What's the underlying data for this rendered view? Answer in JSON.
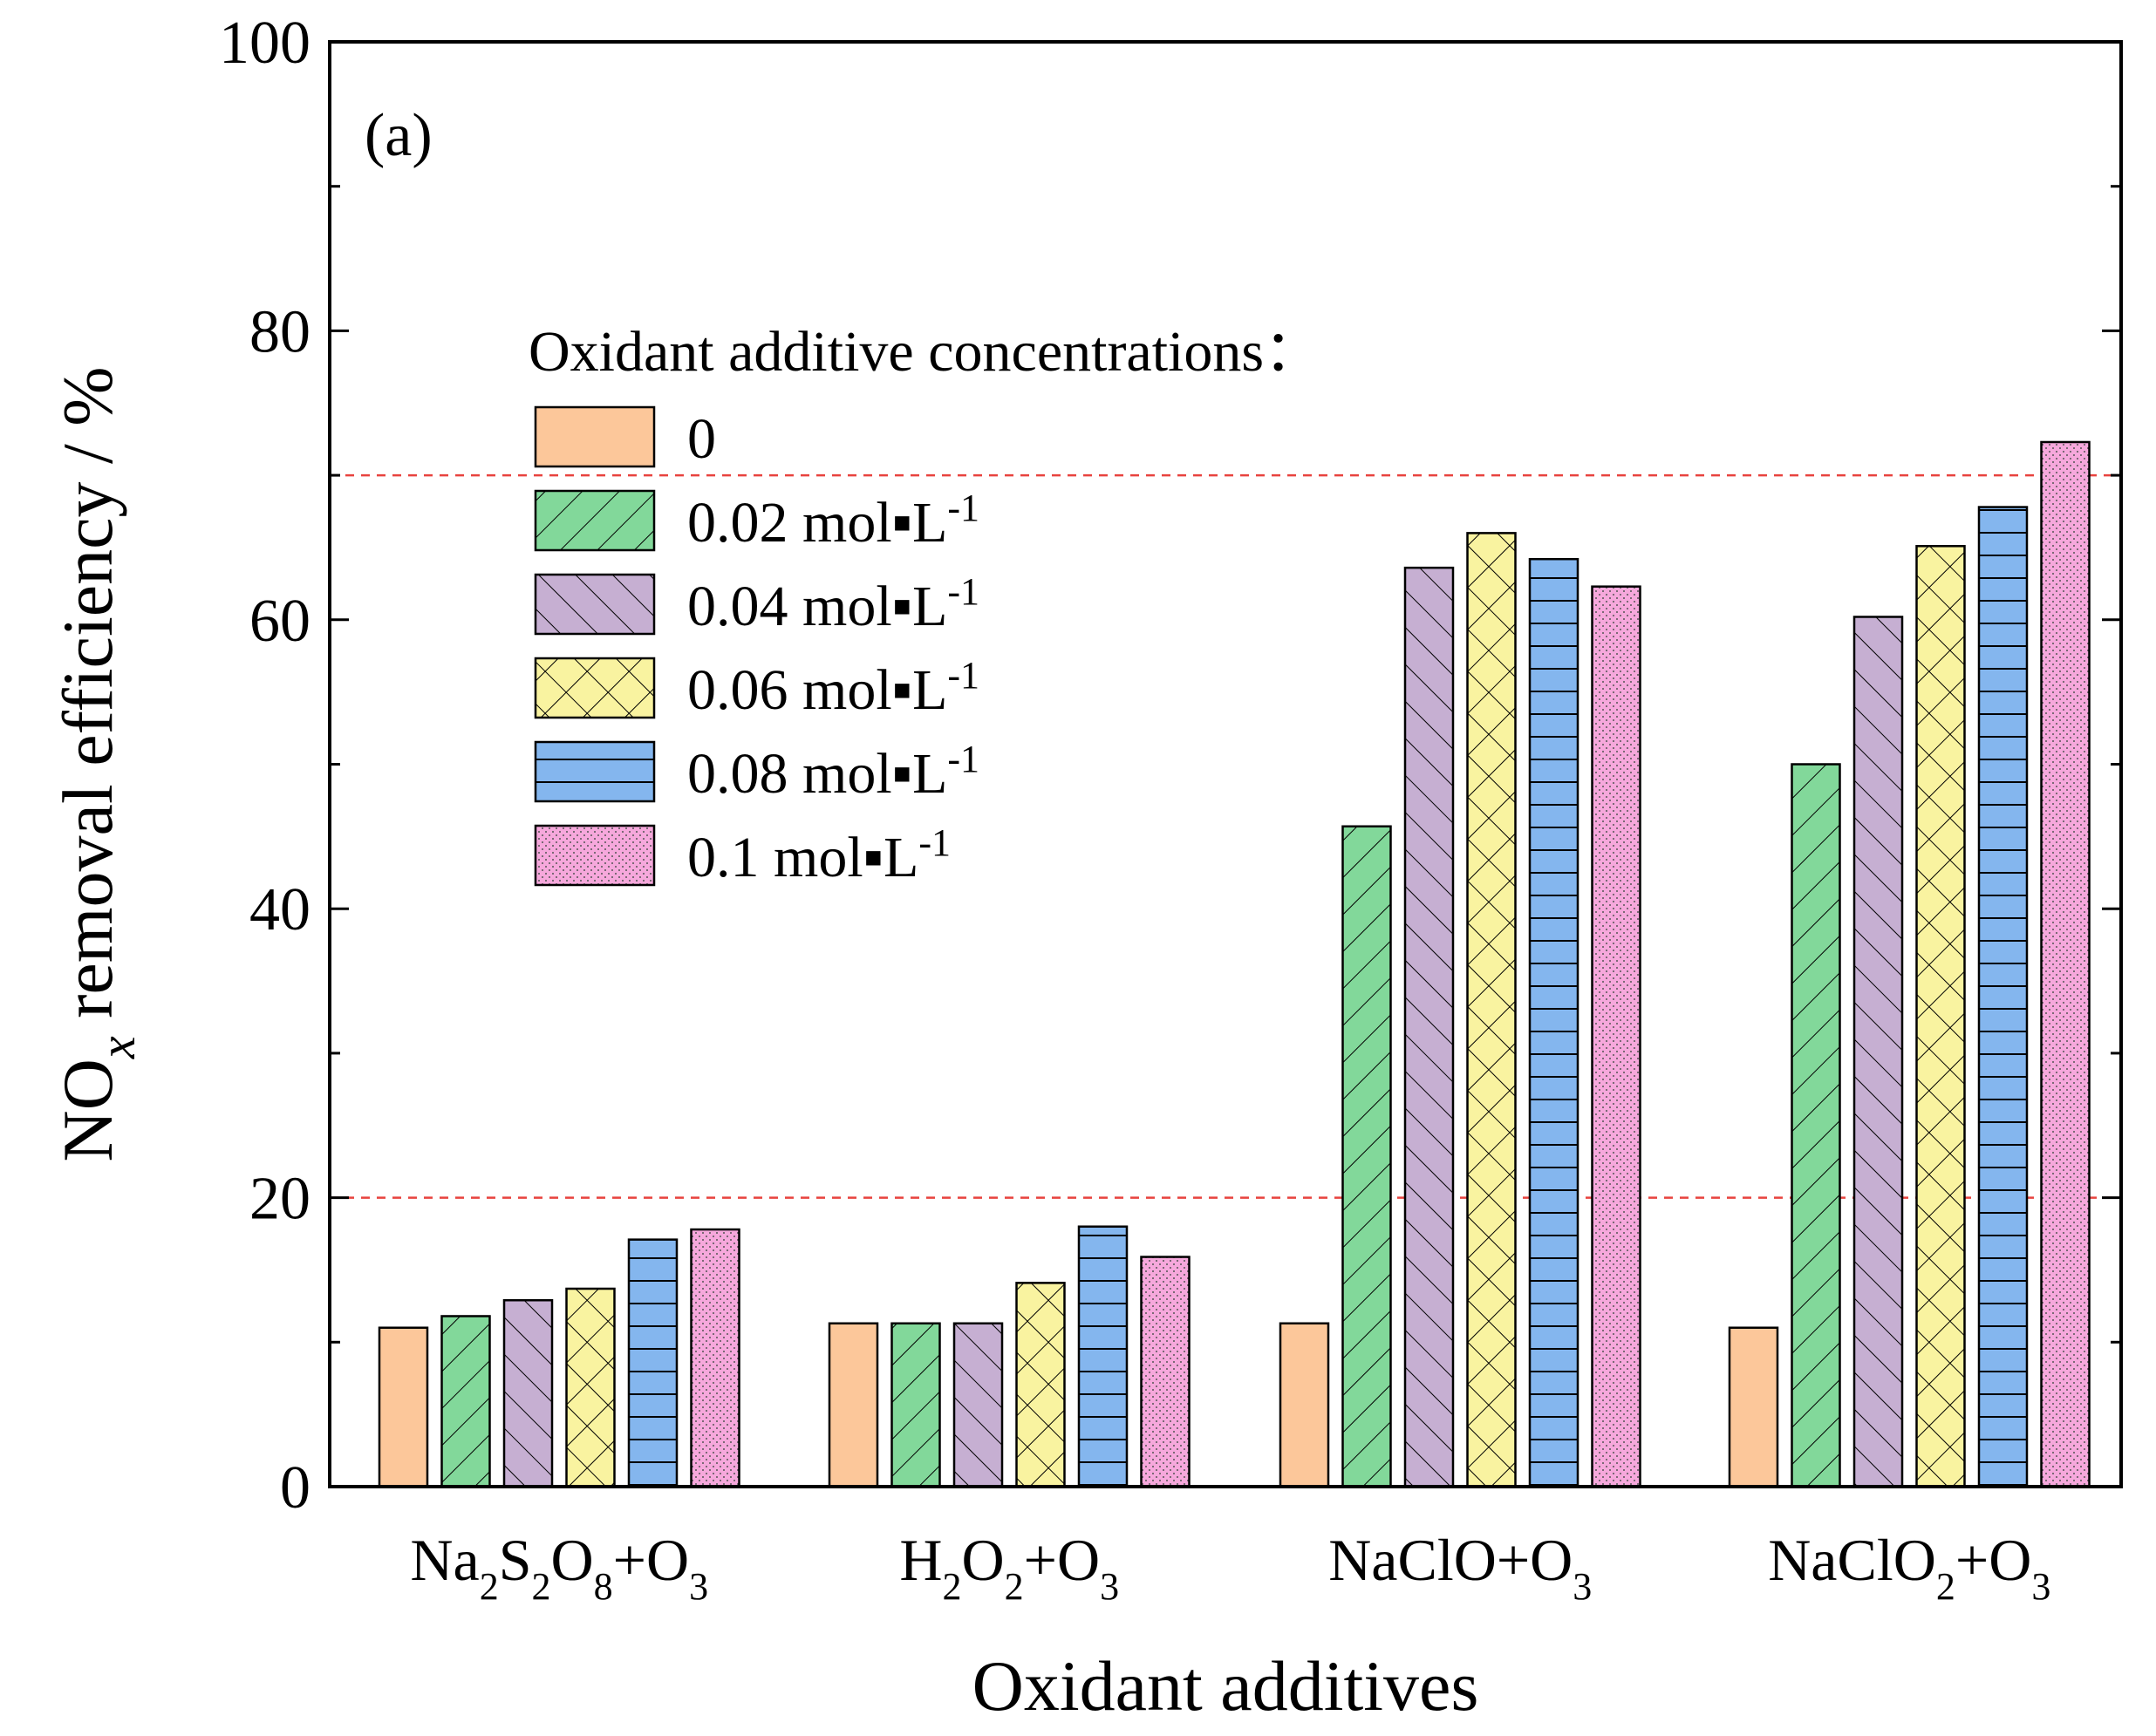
{
  "chart_data": {
    "type": "bar",
    "panel_label": "(a)",
    "xlabel": "Oxidant additives",
    "ylabel": {
      "prefix": "NO",
      "subscript": "x",
      "suffix": " removal efficiency / %"
    },
    "ylim": [
      0,
      100
    ],
    "yticks": [
      0,
      20,
      40,
      60,
      80,
      100
    ],
    "reference_lines": [
      20,
      70
    ],
    "categories": [
      [
        {
          "t": "Na"
        },
        {
          "t": "2",
          "sub": true
        },
        {
          "t": "S"
        },
        {
          "t": "2",
          "sub": true
        },
        {
          "t": "O"
        },
        {
          "t": "8",
          "sub": true
        },
        {
          "t": "+O"
        },
        {
          "t": "3",
          "sub": true
        }
      ],
      [
        {
          "t": "H"
        },
        {
          "t": "2",
          "sub": true
        },
        {
          "t": "O"
        },
        {
          "t": "2",
          "sub": true
        },
        {
          "t": "+O"
        },
        {
          "t": "3",
          "sub": true
        }
      ],
      [
        {
          "t": "NaClO+O"
        },
        {
          "t": "3",
          "sub": true
        }
      ],
      [
        {
          "t": "NaClO"
        },
        {
          "t": "2",
          "sub": true
        },
        {
          "t": "+O"
        },
        {
          "t": "3",
          "sub": true
        }
      ]
    ],
    "legend_title": "Oxidant additive concentrations：",
    "series": [
      {
        "name": "0",
        "unit": false,
        "color": "#FCC79A",
        "pattern": "solid",
        "values": [
          11.0,
          11.3,
          11.3,
          11.0
        ]
      },
      {
        "name": "0.02",
        "unit": true,
        "color": "#82D89A",
        "pattern": "diag-forward",
        "values": [
          11.8,
          11.3,
          45.7,
          50.0
        ]
      },
      {
        "name": "0.04",
        "unit": true,
        "color": "#C6AFD2",
        "pattern": "diag-back",
        "values": [
          12.9,
          11.3,
          63.6,
          60.2
        ]
      },
      {
        "name": "0.06",
        "unit": true,
        "color": "#F9F3A0",
        "pattern": "crosshatch",
        "values": [
          13.7,
          14.1,
          66.0,
          65.1
        ]
      },
      {
        "name": "0.08",
        "unit": true,
        "color": "#84B6EE",
        "pattern": "horizontal",
        "values": [
          17.1,
          18.0,
          64.2,
          67.8
        ]
      },
      {
        "name": "0.1",
        "unit": true,
        "color": "#F6A8DC",
        "pattern": "dots",
        "values": [
          17.8,
          15.9,
          62.3,
          72.3
        ]
      }
    ],
    "unit_label": {
      "base": " mol▪L",
      "sup": "-1"
    }
  }
}
